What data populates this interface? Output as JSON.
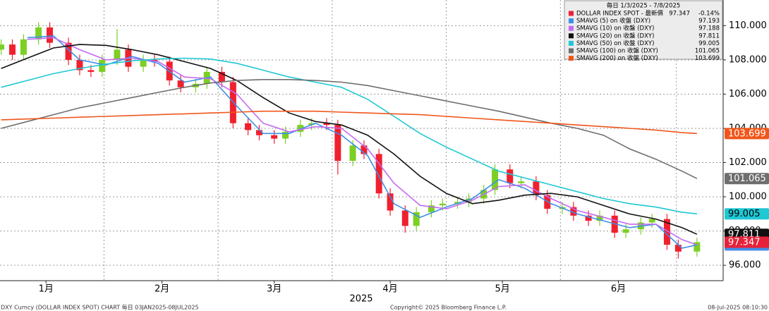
{
  "chart_data": {
    "type": "candlestick",
    "legend_title": "毎日 1/3/2025 - 7/8/2025",
    "xlabel": "2025",
    "xlim": [
      2.7,
      196
    ],
    "xticks": [
      {
        "value": 15,
        "label": "1月"
      },
      {
        "value": 46,
        "label": "2月"
      },
      {
        "value": 76,
        "label": "3月"
      },
      {
        "value": 107,
        "label": "4月"
      },
      {
        "value": 137,
        "label": "5月"
      },
      {
        "value": 168,
        "label": "6月"
      }
    ],
    "ylim": [
      95.1,
      111.5
    ],
    "yticks": [
      {
        "value": 96,
        "label": "96.000"
      },
      {
        "value": 98,
        "label": "98.000"
      },
      {
        "value": 100,
        "label": "100.000"
      },
      {
        "value": 102,
        "label": "102.000"
      },
      {
        "value": 104,
        "label": "104.000"
      },
      {
        "value": 106,
        "label": "106.000"
      },
      {
        "value": 108,
        "label": "108.000"
      },
      {
        "value": 110,
        "label": "110.000"
      }
    ],
    "grid": true,
    "candles": {
      "name": "DOLLAR INDEX SPOT - 最新價",
      "change": "-0.14%",
      "color": "#e8213a",
      "up_color": "#7ccf24",
      "down_color": "#f0202e",
      "x": [
        3,
        6,
        9,
        13,
        16,
        21,
        24,
        27,
        30,
        34,
        37,
        41,
        44,
        48,
        51,
        55,
        58,
        62,
        65,
        69,
        72,
        76,
        79,
        83,
        86,
        90,
        93,
        97,
        100,
        104,
        107,
        111,
        114,
        118,
        121,
        125,
        128,
        132,
        135,
        139,
        142,
        146,
        149,
        153,
        156,
        160,
        163,
        167,
        170,
        174,
        177,
        181,
        184,
        189
      ],
      "open": [
        108.6,
        108.9,
        108.3,
        109.2,
        109.9,
        109.0,
        108.0,
        107.4,
        107.3,
        108.0,
        108.6,
        107.6,
        108.0,
        107.9,
        106.8,
        106.4,
        106.6,
        107.3,
        106.7,
        104.3,
        103.9,
        103.6,
        103.4,
        103.8,
        104.2,
        104.3,
        104.2,
        102.1,
        103.0,
        102.5,
        100.2,
        99.2,
        98.3,
        99.1,
        99.5,
        99.6,
        99.7,
        99.9,
        100.4,
        101.6,
        100.8,
        100.9,
        100.1,
        99.3,
        99.4,
        98.9,
        98.6,
        98.9,
        97.9,
        98.1,
        98.5,
        98.7,
        97.2,
        96.8
      ],
      "high": [
        109.2,
        109.2,
        109.5,
        110.2,
        110.2,
        109.3,
        108.3,
        107.7,
        108.3,
        109.8,
        108.9,
        108.3,
        108.3,
        108.2,
        107.1,
        106.9,
        107.6,
        107.6,
        107.0,
        104.6,
        104.2,
        103.9,
        104.1,
        104.5,
        104.6,
        104.6,
        104.5,
        103.3,
        103.3,
        102.8,
        100.5,
        99.5,
        99.4,
        99.8,
        99.9,
        100.0,
        100.2,
        100.7,
        101.9,
        101.9,
        101.2,
        101.2,
        100.4,
        99.7,
        99.7,
        99.2,
        99.2,
        99.2,
        98.4,
        98.8,
        99.0,
        99.0,
        97.5,
        97.6
      ],
      "low": [
        108.3,
        108.0,
        108.0,
        108.9,
        108.7,
        107.7,
        107.1,
        107.0,
        107.0,
        107.7,
        107.3,
        107.3,
        107.6,
        106.5,
        106.1,
        106.1,
        106.3,
        106.4,
        104.0,
        103.6,
        103.3,
        103.1,
        103.1,
        103.5,
        103.9,
        103.9,
        101.3,
        101.8,
        102.2,
        99.9,
        98.9,
        97.9,
        98.0,
        98.8,
        99.2,
        99.3,
        99.4,
        99.6,
        100.1,
        100.5,
        100.5,
        99.8,
        99.0,
        99.0,
        98.6,
        98.3,
        98.3,
        97.6,
        97.6,
        97.8,
        98.2,
        96.9,
        96.4,
        96.5
      ],
      "close": [
        108.9,
        108.3,
        109.2,
        109.9,
        109.0,
        108.0,
        107.4,
        107.3,
        108.0,
        108.6,
        107.6,
        108.0,
        107.9,
        106.8,
        106.4,
        106.6,
        107.3,
        106.7,
        104.3,
        103.9,
        103.6,
        103.4,
        103.8,
        104.2,
        104.3,
        104.2,
        102.1,
        103.0,
        102.5,
        100.2,
        99.2,
        98.3,
        99.1,
        99.5,
        99.6,
        99.7,
        99.9,
        100.4,
        101.6,
        100.8,
        100.9,
        100.1,
        99.3,
        99.4,
        98.9,
        98.6,
        98.9,
        97.9,
        98.1,
        98.5,
        98.7,
        97.2,
        96.8,
        97.347
      ]
    },
    "x": [
      3,
      10,
      17,
      24,
      31,
      38,
      45,
      52,
      59,
      66,
      73,
      80,
      87,
      94,
      101,
      108,
      115,
      122,
      129,
      136,
      143,
      150,
      157,
      164,
      171,
      178,
      185,
      189
    ],
    "series": [
      {
        "name": "SMAVG (5)  on 收盤 (DXY)",
        "color": "#3d8fe8",
        "values": [
          null,
          109.3,
          109.4,
          108.0,
          107.7,
          108.2,
          107.8,
          106.7,
          107.0,
          105.3,
          103.7,
          103.7,
          104.3,
          103.6,
          102.4,
          99.6,
          98.8,
          99.4,
          99.9,
          101.0,
          100.5,
          99.6,
          99.0,
          98.6,
          98.2,
          98.4,
          97.0,
          97.193
        ]
      },
      {
        "name": "SMAVG (10)  on 收盤 (DXY)",
        "color": "#c36bf0",
        "values": [
          null,
          109.2,
          109.3,
          108.6,
          108.0,
          108.1,
          107.9,
          107.0,
          106.9,
          106.0,
          104.3,
          103.8,
          104.1,
          104.0,
          102.8,
          100.8,
          99.5,
          99.3,
          99.8,
          100.6,
          100.7,
          99.9,
          99.2,
          98.8,
          98.4,
          98.4,
          97.5,
          97.188
        ]
      },
      {
        "name": "SMAVG (20)  on 收盤 (DXY)",
        "color": "#111111",
        "values": [
          107.5,
          108.1,
          108.7,
          108.9,
          108.85,
          108.6,
          108.3,
          107.9,
          107.5,
          106.8,
          105.8,
          104.9,
          104.4,
          104.2,
          103.6,
          102.5,
          101.2,
          100.2,
          99.6,
          99.8,
          100.1,
          100.2,
          100.0,
          99.5,
          99.0,
          98.7,
          98.2,
          97.811
        ]
      },
      {
        "name": "SMAVG (50)  on 收盤 (DXY)",
        "color": "#1ec8d4",
        "values": [
          106.4,
          106.8,
          107.2,
          107.5,
          107.75,
          107.95,
          108.05,
          108.1,
          108.05,
          107.8,
          107.4,
          107.0,
          106.7,
          106.4,
          105.7,
          104.7,
          103.7,
          102.9,
          102.2,
          101.5,
          101.1,
          100.7,
          100.3,
          99.9,
          99.6,
          99.4,
          99.1,
          99.005
        ]
      },
      {
        "name": "SMAVG (100)  on 收盤 (DXY)",
        "color": "#6e6e6e",
        "values": [
          104.0,
          104.4,
          104.8,
          105.2,
          105.5,
          105.8,
          106.1,
          106.4,
          106.65,
          106.8,
          106.85,
          106.85,
          106.8,
          106.7,
          106.5,
          106.2,
          105.9,
          105.6,
          105.3,
          105.0,
          104.65,
          104.3,
          104.0,
          103.6,
          102.8,
          102.2,
          101.5,
          101.065
        ]
      },
      {
        "name": "SMAVG (200)  on 收盤 (DXY)",
        "color": "#f0561a",
        "values": [
          104.5,
          104.55,
          104.6,
          104.65,
          104.7,
          104.75,
          104.8,
          104.85,
          104.9,
          104.95,
          105.0,
          105.0,
          105.0,
          104.95,
          104.9,
          104.85,
          104.8,
          104.7,
          104.6,
          104.5,
          104.4,
          104.3,
          104.2,
          104.1,
          104.0,
          103.9,
          103.75,
          103.699
        ]
      }
    ]
  },
  "footer": {
    "left": "DXY Curncy (DOLLAR INDEX SPOT) CHART  毎日 03JAN2025-08JUL2025",
    "center": "Copyright© 2025 Bloomberg Finance L.P.",
    "right": "08-Jul-2025 08:10:30"
  }
}
